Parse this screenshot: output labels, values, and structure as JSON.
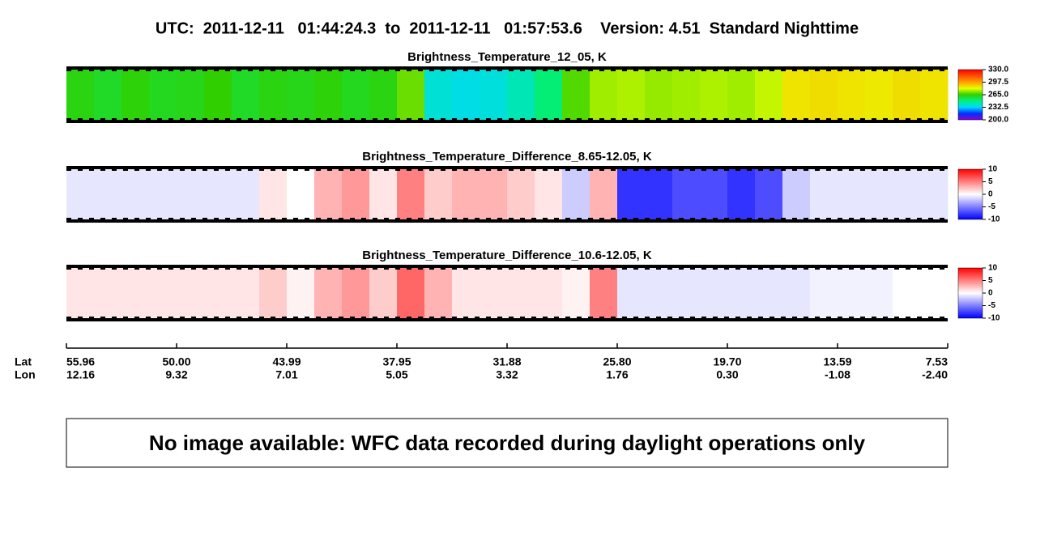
{
  "chart_data": {
    "type": "heatmap",
    "title": "UTC:  2011-12-11   01:44:24.3  to  2011-12-11   01:57:53.6    Version: 4.51  Standard Nighttime",
    "panels": [
      {
        "title": "Brightness_Temperature_12_05, K",
        "values": [
          263,
          260,
          264,
          261,
          262,
          265,
          260,
          263,
          262,
          264,
          261,
          263,
          270,
          238,
          236,
          237,
          242,
          250,
          268,
          275,
          276,
          274,
          275,
          276,
          275,
          278,
          286,
          287,
          286,
          285,
          287,
          286
        ],
        "colors": [
          "#8a00d6",
          "#0030ff",
          "#00d8ff",
          "#00f080",
          "#30d000",
          "#e8ff00",
          "#ffa000",
          "#ff5000",
          "#ff0000"
        ],
        "clim": [
          200,
          330
        ],
        "cticks": [
          {
            "value": 330,
            "label": "330.0"
          },
          {
            "value": 297.5,
            "label": "297.5"
          },
          {
            "value": 265,
            "label": "265.0"
          },
          {
            "value": 232.5,
            "label": "232.5"
          },
          {
            "value": 200,
            "label": "200.0"
          }
        ]
      },
      {
        "title": "Brightness_Temperature_Difference_8.65-12.05, K",
        "values": [
          -1,
          -1,
          -1,
          -1,
          -1,
          -1,
          -1,
          1,
          0,
          3,
          4,
          1,
          5,
          2,
          3,
          3,
          2,
          1,
          -2,
          3,
          -8,
          -8,
          -7,
          -7,
          -8,
          -7,
          -2,
          -1,
          -1,
          -1,
          -1,
          -1
        ],
        "colors": [
          "#0000ff",
          "#ffffff",
          "#ff0000"
        ],
        "clim": [
          -10,
          10
        ],
        "cticks": [
          10,
          5,
          0,
          -5,
          -10
        ]
      },
      {
        "title": "Brightness_Temperature_Difference_10.6-12.05, K",
        "values": [
          1,
          1,
          1,
          1,
          1,
          1,
          1,
          2,
          0.5,
          3,
          4,
          2,
          6,
          3,
          1,
          1,
          1,
          1,
          0.5,
          5,
          -1,
          -1,
          -1,
          -1,
          -1,
          -1,
          -1,
          -0.5,
          -0.5,
          -0.5,
          0,
          0
        ],
        "colors": [
          "#0000ff",
          "#ffffff",
          "#ff0000"
        ],
        "clim": [
          -10,
          10
        ],
        "cticks": [
          10,
          5,
          0,
          -5,
          -10
        ]
      }
    ],
    "lat_label": "Lat",
    "lon_label": "Lon",
    "lat": [
      "55.96",
      "50.00",
      "43.99",
      "37.95",
      "31.88",
      "25.80",
      "19.70",
      "13.59",
      "7.53"
    ],
    "lon": [
      "12.16",
      "9.32",
      "7.01",
      "5.05",
      "3.32",
      "1.76",
      "0.30",
      "-1.08",
      "-2.40"
    ],
    "note": "No image available: WFC data recorded during daylight operations only"
  }
}
